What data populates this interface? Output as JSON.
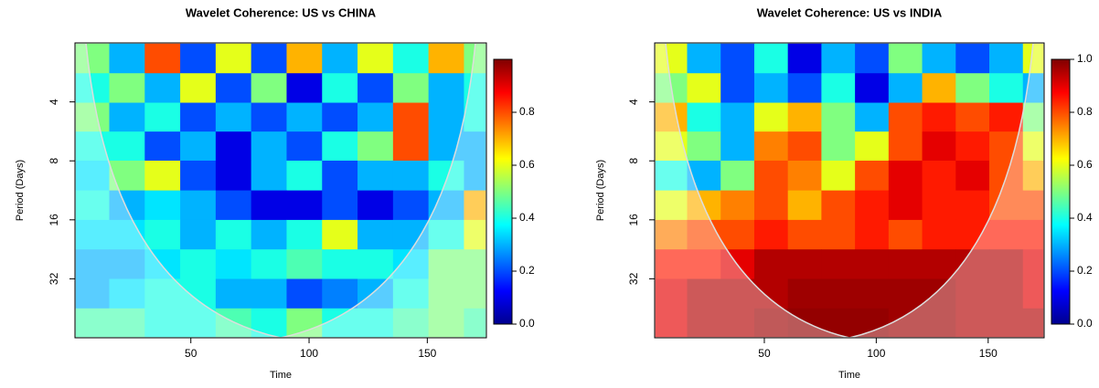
{
  "chart_data": [
    {
      "type": "heatmap",
      "title": "Wavelet Coherence: US vs CHINA",
      "x_label": "Time",
      "y_label": "Period (Days)",
      "x": [
        8,
        23,
        38,
        53,
        68,
        83,
        98,
        113,
        128,
        143,
        158,
        173
      ],
      "y": [
        2.4,
        3.4,
        4.8,
        6.7,
        9.5,
        13.5,
        19,
        27,
        38,
        54
      ],
      "z": [
        [
          0.5,
          0.3,
          0.8,
          0.2,
          0.6,
          0.2,
          0.7,
          0.3,
          0.6,
          0.4,
          0.7,
          0.5
        ],
        [
          0.4,
          0.5,
          0.3,
          0.6,
          0.2,
          0.5,
          0.1,
          0.4,
          0.2,
          0.5,
          0.3,
          0.4
        ],
        [
          0.5,
          0.3,
          0.4,
          0.2,
          0.3,
          0.2,
          0.3,
          0.2,
          0.3,
          0.8,
          0.3,
          0.4
        ],
        [
          0.4,
          0.4,
          0.2,
          0.3,
          0.1,
          0.3,
          0.2,
          0.4,
          0.5,
          0.8,
          0.3,
          0.3
        ],
        [
          0.35,
          0.5,
          0.6,
          0.2,
          0.1,
          0.3,
          0.4,
          0.2,
          0.3,
          0.3,
          0.4,
          0.3
        ],
        [
          0.4,
          0.3,
          0.35,
          0.3,
          0.2,
          0.1,
          0.1,
          0.2,
          0.1,
          0.2,
          0.3,
          0.7
        ],
        [
          0.35,
          0.35,
          0.4,
          0.3,
          0.4,
          0.3,
          0.4,
          0.6,
          0.3,
          0.3,
          0.4,
          0.6
        ],
        [
          0.3,
          0.3,
          0.35,
          0.4,
          0.35,
          0.4,
          0.45,
          0.4,
          0.4,
          0.35,
          0.5,
          0.5
        ],
        [
          0.3,
          0.35,
          0.4,
          0.4,
          0.3,
          0.3,
          0.2,
          0.25,
          0.3,
          0.4,
          0.5,
          0.5
        ],
        [
          0.45,
          0.45,
          0.4,
          0.4,
          0.45,
          0.4,
          0.5,
          0.4,
          0.4,
          0.45,
          0.5,
          0.45
        ]
      ],
      "xlim": [
        1,
        175
      ],
      "xticks": [
        50,
        100,
        150
      ],
      "ylim": [
        2,
        64
      ],
      "yticks": [
        4,
        8,
        16,
        32
      ],
      "log_y": true,
      "zlim": [
        0,
        1
      ],
      "zticks": [
        {
          "value": 0,
          "label": "0.0"
        },
        0.2,
        0.4,
        0.6,
        0.8
      ]
    },
    {
      "type": "heatmap",
      "title": "Wavelet Coherence: US vs INDIA",
      "x_label": "Time",
      "y_label": "Period (Days)",
      "x": [
        8,
        23,
        38,
        53,
        68,
        83,
        98,
        113,
        128,
        143,
        158,
        173
      ],
      "y": [
        2.4,
        3.4,
        4.8,
        6.7,
        9.5,
        13.5,
        19,
        27,
        38,
        54
      ],
      "z": [
        [
          0.6,
          0.3,
          0.2,
          0.4,
          0.1,
          0.3,
          0.2,
          0.5,
          0.3,
          0.2,
          0.3,
          0.6
        ],
        [
          0.5,
          0.6,
          0.2,
          0.3,
          0.2,
          0.4,
          0.1,
          0.3,
          0.7,
          0.5,
          0.4,
          0.3
        ],
        [
          0.7,
          0.4,
          0.3,
          0.6,
          0.7,
          0.5,
          0.3,
          0.8,
          0.85,
          0.8,
          0.85,
          0.5
        ],
        [
          0.6,
          0.5,
          0.3,
          0.75,
          0.8,
          0.5,
          0.6,
          0.8,
          0.9,
          0.85,
          0.8,
          0.6
        ],
        [
          0.4,
          0.3,
          0.5,
          0.8,
          0.75,
          0.6,
          0.8,
          0.9,
          0.85,
          0.9,
          0.8,
          0.7
        ],
        [
          0.6,
          0.7,
          0.75,
          0.8,
          0.7,
          0.8,
          0.85,
          0.9,
          0.85,
          0.85,
          0.8,
          0.8
        ],
        [
          0.75,
          0.8,
          0.8,
          0.85,
          0.8,
          0.8,
          0.85,
          0.8,
          0.85,
          0.85,
          0.85,
          0.85
        ],
        [
          0.85,
          0.85,
          0.9,
          0.95,
          0.95,
          0.95,
          0.95,
          0.95,
          0.95,
          0.95,
          0.95,
          0.9
        ],
        [
          0.9,
          0.95,
          0.95,
          0.95,
          0.97,
          0.97,
          0.97,
          0.97,
          0.97,
          0.95,
          0.95,
          0.9
        ],
        [
          0.9,
          0.95,
          0.95,
          0.97,
          0.98,
          0.98,
          0.98,
          0.97,
          0.97,
          0.95,
          0.95,
          0.95
        ]
      ],
      "xlim": [
        1,
        175
      ],
      "xticks": [
        50,
        100,
        150
      ],
      "ylim": [
        2,
        64
      ],
      "yticks": [
        4,
        8,
        16,
        32
      ],
      "log_y": true,
      "zlim": [
        0,
        1
      ],
      "zticks": [
        {
          "value": 0,
          "label": "0.0"
        },
        0.2,
        0.4,
        0.6,
        0.8,
        {
          "value": 1,
          "label": "1.0"
        }
      ]
    }
  ]
}
